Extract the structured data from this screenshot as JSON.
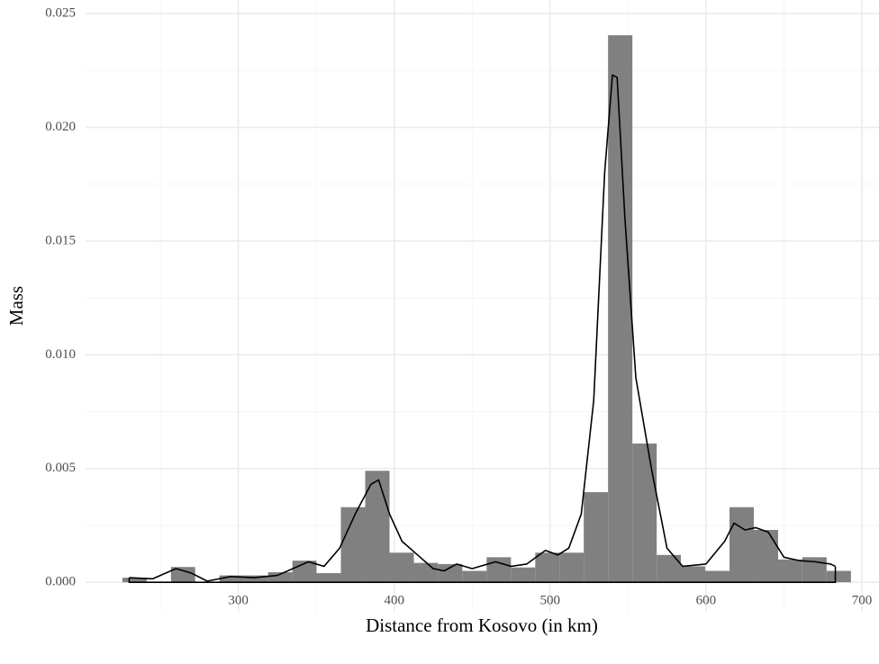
{
  "chart_data": {
    "type": "histogram",
    "x_label": "Distance from Kosovo (in km)",
    "y_label": "Mass",
    "bins": [
      225.6,
      241.2,
      256.8,
      272.3,
      287.9,
      303.5,
      319.1,
      334.7,
      350.2,
      365.8,
      381.4,
      397.0,
      412.6,
      428.1,
      443.7,
      459.3,
      474.9,
      490.5,
      506.0,
      521.6,
      537.2,
      552.8,
      568.4,
      583.9,
      599.5,
      615.1,
      630.7,
      646.3,
      661.8,
      677.4,
      693.0
    ],
    "values": [
      0.0002,
      0,
      0.00067,
      0,
      0.0003,
      0.0003,
      0.00044,
      0.00095,
      0.0004,
      0.0033,
      0.0049,
      0.0013,
      0.00085,
      0.0008,
      0.0005,
      0.0011,
      0.00065,
      0.0013,
      0.0013,
      0.00396,
      0.02405,
      0.0061,
      0.0012,
      0.0007,
      0.0005,
      0.0033,
      0.0023,
      0.001,
      0.0011,
      0.0005
    ],
    "color": "#808080",
    "density": {
      "color": "#000000",
      "x": [
        230,
        245,
        260,
        270,
        280,
        295,
        310,
        325,
        335,
        345,
        355,
        365,
        375,
        385,
        390,
        397,
        405,
        415,
        425,
        432,
        440,
        450,
        465,
        475,
        485,
        497,
        505,
        512,
        520,
        528,
        535,
        540,
        543,
        548,
        555,
        565,
        575,
        585,
        600,
        612,
        618,
        625,
        632,
        640,
        650,
        660,
        670,
        680,
        683
      ],
      "values": [
        0.0002,
        0.00015,
        0.0006,
        0.0004,
        5e-05,
        0.00025,
        0.0002,
        0.0003,
        0.0006,
        0.0009,
        0.0007,
        0.0015,
        0.003,
        0.0043,
        0.0045,
        0.003,
        0.0018,
        0.0012,
        0.0006,
        0.0005,
        0.0008,
        0.0006,
        0.0009,
        0.0007,
        0.0008,
        0.0014,
        0.0012,
        0.0015,
        0.003,
        0.008,
        0.018,
        0.0223,
        0.0222,
        0.016,
        0.009,
        0.005,
        0.0015,
        0.0007,
        0.0008,
        0.0018,
        0.0026,
        0.0023,
        0.0024,
        0.0022,
        0.0011,
        0.00095,
        0.0009,
        0.0008,
        0.0007
      ]
    },
    "xlim": [
      202,
      711
    ],
    "ylim": [
      -0.0013,
      0.0256
    ],
    "xticks": [
      300,
      400,
      500,
      600,
      700
    ],
    "yticks": [
      {
        "value": 0,
        "label": "0.000"
      },
      {
        "value": 0.005,
        "label": "0.005"
      },
      {
        "value": 0.01,
        "label": "0.010"
      },
      {
        "value": 0.015,
        "label": "0.015"
      },
      {
        "value": 0.02,
        "label": "0.020"
      },
      {
        "value": 0.025,
        "label": "0.025"
      }
    ],
    "xminorticks": [
      250,
      350,
      450,
      550,
      650
    ],
    "yminorticks": [
      0.0025,
      0.0075,
      0.0125,
      0.0175,
      0.0225
    ],
    "grid": true
  }
}
